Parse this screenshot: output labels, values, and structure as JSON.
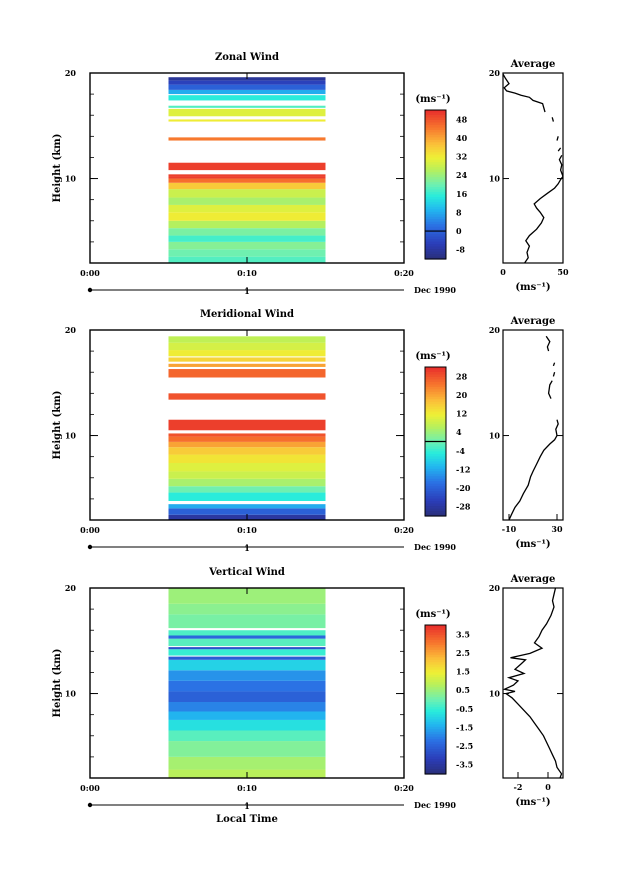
{
  "figure": {
    "x_label": "Local Time",
    "date_label": "Dec 1990",
    "day_tick": "1",
    "time_ticks": [
      "0:00",
      "0:10",
      "0:20"
    ]
  },
  "chart_data": [
    {
      "type": "heatmap",
      "title": "Zonal Wind",
      "ylabel": "Height (km)",
      "ylim": [
        2,
        20
      ],
      "y_ticks": [
        "20",
        "10"
      ],
      "x_ticks": [
        "0:00",
        "0:10",
        "0:20"
      ],
      "xlim_minutes": [
        0,
        20
      ],
      "data_x_range_minutes": [
        5,
        15
      ],
      "colorbar": {
        "unit_label": "(ms⁻¹)",
        "tick_labels": [
          "48",
          "40",
          "32",
          "24",
          "16",
          "8",
          "0",
          "-8"
        ],
        "range": [
          -12,
          52
        ],
        "zero_line": 0
      },
      "profile_bands": [
        {
          "bottom": 2.0,
          "top": 2.6,
          "value": 18
        },
        {
          "bottom": 2.6,
          "top": 3.3,
          "value": 20
        },
        {
          "bottom": 3.3,
          "top": 4.0,
          "value": 22
        },
        {
          "bottom": 4.0,
          "top": 4.6,
          "value": 17
        },
        {
          "bottom": 4.6,
          "top": 5.3,
          "value": 21
        },
        {
          "bottom": 5.3,
          "top": 6.0,
          "value": 26
        },
        {
          "bottom": 6.0,
          "top": 6.8,
          "value": 32
        },
        {
          "bottom": 6.8,
          "top": 7.5,
          "value": 30
        },
        {
          "bottom": 7.5,
          "top": 8.2,
          "value": 25
        },
        {
          "bottom": 8.2,
          "top": 9.0,
          "value": 28
        },
        {
          "bottom": 9.0,
          "top": 9.6,
          "value": 36
        },
        {
          "bottom": 9.6,
          "top": 10.0,
          "value": 45
        },
        {
          "bottom": 10.0,
          "top": 10.2,
          "value": 50
        },
        {
          "bottom": 10.2,
          "top": 10.4,
          "value": 50
        },
        {
          "bottom": 10.8,
          "top": 11.5,
          "value": 50
        },
        {
          "bottom": 13.6,
          "top": 13.9,
          "value": 44
        },
        {
          "bottom": 15.4,
          "top": 15.6,
          "value": 32
        },
        {
          "bottom": 15.9,
          "top": 16.6,
          "value": 30
        },
        {
          "bottom": 16.7,
          "top": 16.9,
          "value": 18
        },
        {
          "bottom": 17.4,
          "top": 17.9,
          "value": 15
        },
        {
          "bottom": 18.0,
          "top": 18.4,
          "value": 8
        },
        {
          "bottom": 18.4,
          "top": 18.9,
          "value": 0
        },
        {
          "bottom": 18.9,
          "top": 19.3,
          "value": -5
        },
        {
          "bottom": 19.3,
          "top": 19.6,
          "value": -9
        }
      ],
      "average_profile": {
        "title": "Average",
        "xlabel": "(ms⁻¹)",
        "xlim": [
          0,
          50
        ],
        "x_ticks": [
          "0",
          "50"
        ],
        "y_ticks": [
          "20",
          "10"
        ],
        "segments": [
          [
            [
              18,
              2.0
            ],
            [
              21,
              2.5
            ],
            [
              20,
              3.0
            ],
            [
              22,
              3.6
            ],
            [
              19,
              4.1
            ],
            [
              22,
              4.6
            ],
            [
              28,
              5.2
            ],
            [
              32,
              5.8
            ],
            [
              34,
              6.3
            ],
            [
              31,
              6.8
            ],
            [
              28,
              7.2
            ],
            [
              26,
              7.6
            ],
            [
              31,
              8.1
            ],
            [
              37,
              8.6
            ],
            [
              43,
              9.1
            ],
            [
              46,
              9.5
            ],
            [
              48,
              9.9
            ],
            [
              50,
              10.2
            ]
          ],
          [
            [
              50,
              10.2
            ],
            [
              48,
              10.8
            ],
            [
              49,
              11.3
            ],
            [
              47,
              11.8
            ],
            [
              49,
              12.2
            ]
          ],
          [
            [
              46,
              12.6
            ],
            [
              48,
              12.9
            ]
          ],
          [
            [
              45,
              13.6
            ],
            [
              46,
              14.0
            ]
          ],
          [
            [
              42,
              15.4
            ],
            [
              41,
              15.8
            ]
          ],
          [
            [
              35,
              16.3
            ],
            [
              34,
              16.7
            ],
            [
              33,
              17.1
            ],
            [
              25,
              17.4
            ],
            [
              22,
              17.7
            ],
            [
              15,
              17.9
            ],
            [
              10,
              18.1
            ],
            [
              3,
              18.3
            ],
            [
              1,
              18.6
            ],
            [
              5,
              19.0
            ],
            [
              2,
              19.5
            ],
            [
              0,
              19.9
            ]
          ]
        ]
      }
    },
    {
      "type": "heatmap",
      "title": "Meridional Wind",
      "ylabel": "Height (km)",
      "ylim": [
        2,
        20
      ],
      "y_ticks": [
        "20",
        "10"
      ],
      "x_ticks": [
        "0:00",
        "0:10",
        "0:20"
      ],
      "xlim_minutes": [
        0,
        20
      ],
      "data_x_range_minutes": [
        5,
        15
      ],
      "colorbar": {
        "unit_label": "(ms⁻¹)",
        "tick_labels": [
          "28",
          "20",
          "12",
          "4",
          "-4",
          "-12",
          "-20",
          "-28"
        ],
        "range": [
          -32,
          32
        ],
        "zero_line": 0
      },
      "profile_bands": [
        {
          "bottom": 2.0,
          "top": 2.5,
          "value": -28
        },
        {
          "bottom": 2.5,
          "top": 3.1,
          "value": -20
        },
        {
          "bottom": 3.1,
          "top": 3.5,
          "value": -12
        },
        {
          "bottom": 3.8,
          "top": 4.6,
          "value": -5
        },
        {
          "bottom": 4.6,
          "top": 5.2,
          "value": 0
        },
        {
          "bottom": 5.2,
          "top": 5.9,
          "value": 5
        },
        {
          "bottom": 5.9,
          "top": 6.6,
          "value": 8
        },
        {
          "bottom": 6.6,
          "top": 7.4,
          "value": 10
        },
        {
          "bottom": 7.4,
          "top": 8.2,
          "value": 13
        },
        {
          "bottom": 8.2,
          "top": 8.9,
          "value": 16
        },
        {
          "bottom": 8.9,
          "top": 9.4,
          "value": 20
        },
        {
          "bottom": 9.4,
          "top": 9.9,
          "value": 25
        },
        {
          "bottom": 9.9,
          "top": 10.2,
          "value": 28
        },
        {
          "bottom": 10.5,
          "top": 11.5,
          "value": 30
        },
        {
          "bottom": 13.4,
          "top": 14.0,
          "value": 28
        },
        {
          "bottom": 15.5,
          "top": 16.3,
          "value": 26
        },
        {
          "bottom": 16.5,
          "top": 16.8,
          "value": 20
        },
        {
          "bottom": 17.0,
          "top": 17.4,
          "value": 15
        },
        {
          "bottom": 17.5,
          "top": 18.1,
          "value": 12
        },
        {
          "bottom": 18.1,
          "top": 18.8,
          "value": 9
        },
        {
          "bottom": 18.8,
          "top": 19.4,
          "value": 7
        }
      ],
      "average_profile": {
        "title": "Average",
        "xlabel": "(ms⁻¹)",
        "xlim": [
          -15,
          35
        ],
        "x_ticks": [
          "-10",
          "30"
        ],
        "y_ticks": [
          "20",
          "10"
        ],
        "segments": [
          [
            [
              -10,
              2.0
            ],
            [
              -8,
              2.5
            ],
            [
              -5,
              3.2
            ],
            [
              -1,
              3.8
            ],
            [
              2,
              4.5
            ],
            [
              6,
              5.3
            ],
            [
              8,
              6.1
            ],
            [
              10,
              6.6
            ],
            [
              13,
              7.3
            ],
            [
              16,
              8.0
            ],
            [
              19,
              8.6
            ],
            [
              24,
              9.2
            ],
            [
              28,
              9.6
            ],
            [
              30,
              10.0
            ]
          ],
          [
            [
              30,
              10.0
            ],
            [
              29,
              10.6
            ],
            [
              31,
              11.1
            ],
            [
              30,
              11.5
            ]
          ],
          [
            [
              25,
              13.5
            ],
            [
              23,
              14.0
            ],
            [
              24,
              14.8
            ],
            [
              26,
              15.2
            ]
          ],
          [
            [
              27,
              15.6
            ],
            [
              28,
              16.0
            ]
          ],
          [
            [
              27,
              16.6
            ],
            [
              28,
              16.9
            ]
          ],
          [
            [
              23,
              18.0
            ],
            [
              22,
              18.4
            ],
            [
              24,
              18.9
            ],
            [
              21,
              19.4
            ]
          ]
        ]
      }
    },
    {
      "type": "heatmap",
      "title": "Vertical Wind",
      "ylabel": "Height (km)",
      "ylim": [
        2,
        20
      ],
      "y_ticks": [
        "20",
        "10"
      ],
      "x_ticks": [
        "0:00",
        "0:10",
        "0:20"
      ],
      "xlim_minutes": [
        0,
        20
      ],
      "data_x_range_minutes": [
        5,
        15
      ],
      "colorbar": {
        "unit_label": "(ms⁻¹)",
        "tick_labels": [
          "3.5",
          "2.5",
          "1.5",
          "0.5",
          "-0.5",
          "-1.5",
          "-2.5",
          "-3.5"
        ],
        "range": [
          -4,
          4
        ]
      },
      "profile_bands": [
        {
          "bottom": 2.0,
          "top": 2.8,
          "value": 0.8
        },
        {
          "bottom": 2.8,
          "top": 4.0,
          "value": 0.6
        },
        {
          "bottom": 4.0,
          "top": 5.5,
          "value": 0.2
        },
        {
          "bottom": 5.5,
          "top": 6.5,
          "value": -0.2
        },
        {
          "bottom": 6.5,
          "top": 7.5,
          "value": -0.8
        },
        {
          "bottom": 7.5,
          "top": 8.3,
          "value": -1.4
        },
        {
          "bottom": 8.3,
          "top": 9.2,
          "value": -2.0
        },
        {
          "bottom": 9.2,
          "top": 10.2,
          "value": -2.5
        },
        {
          "bottom": 10.2,
          "top": 11.2,
          "value": -2.2
        },
        {
          "bottom": 11.2,
          "top": 12.2,
          "value": -1.8
        },
        {
          "bottom": 12.2,
          "top": 13.2,
          "value": -1.0
        },
        {
          "bottom": 13.2,
          "top": 13.5,
          "value": -2.6
        },
        {
          "bottom": 13.6,
          "top": 14.2,
          "value": -0.5
        },
        {
          "bottom": 14.2,
          "top": 14.4,
          "value": -2.8
        },
        {
          "bottom": 14.5,
          "top": 15.2,
          "value": -0.2
        },
        {
          "bottom": 15.2,
          "top": 15.5,
          "value": -2.4
        },
        {
          "bottom": 15.5,
          "top": 16.0,
          "value": -0.3
        },
        {
          "bottom": 16.2,
          "top": 17.5,
          "value": 0.1
        },
        {
          "bottom": 17.5,
          "top": 18.5,
          "value": 0.3
        },
        {
          "bottom": 18.5,
          "top": 20.0,
          "value": 0.5
        }
      ],
      "average_profile": {
        "title": "Average",
        "xlabel": "(ms⁻¹)",
        "xlim": [
          -3,
          1
        ],
        "x_ticks": [
          "-2",
          "0"
        ],
        "y_ticks": [
          "20",
          "10"
        ],
        "segments": [
          [
            [
              0.8,
              2.0
            ],
            [
              0.9,
              2.4
            ],
            [
              0.6,
              3.0
            ],
            [
              0.5,
              3.6
            ],
            [
              0.3,
              4.2
            ],
            [
              0.1,
              4.8
            ],
            [
              -0.1,
              5.4
            ],
            [
              -0.3,
              6.0
            ],
            [
              -0.6,
              6.6
            ],
            [
              -0.9,
              7.2
            ],
            [
              -1.2,
              7.8
            ],
            [
              -1.6,
              8.4
            ],
            [
              -2.0,
              9.0
            ],
            [
              -2.4,
              9.6
            ],
            [
              -2.8,
              10.0
            ],
            [
              -2.2,
              10.2
            ],
            [
              -2.9,
              10.4
            ],
            [
              -2.3,
              10.8
            ],
            [
              -2.0,
              11.2
            ],
            [
              -2.6,
              11.5
            ],
            [
              -1.6,
              11.9
            ],
            [
              -2.2,
              12.3
            ],
            [
              -1.8,
              12.8
            ],
            [
              -1.5,
              13.2
            ],
            [
              -2.5,
              13.4
            ],
            [
              -1.2,
              13.8
            ],
            [
              -0.4,
              14.3
            ],
            [
              -0.9,
              14.8
            ],
            [
              -0.6,
              15.4
            ],
            [
              -0.4,
              16.0
            ],
            [
              -0.1,
              16.6
            ],
            [
              0.2,
              17.4
            ],
            [
              0.4,
              18.2
            ],
            [
              0.3,
              18.8
            ],
            [
              0.4,
              19.4
            ],
            [
              0.5,
              20.0
            ]
          ]
        ]
      }
    }
  ]
}
